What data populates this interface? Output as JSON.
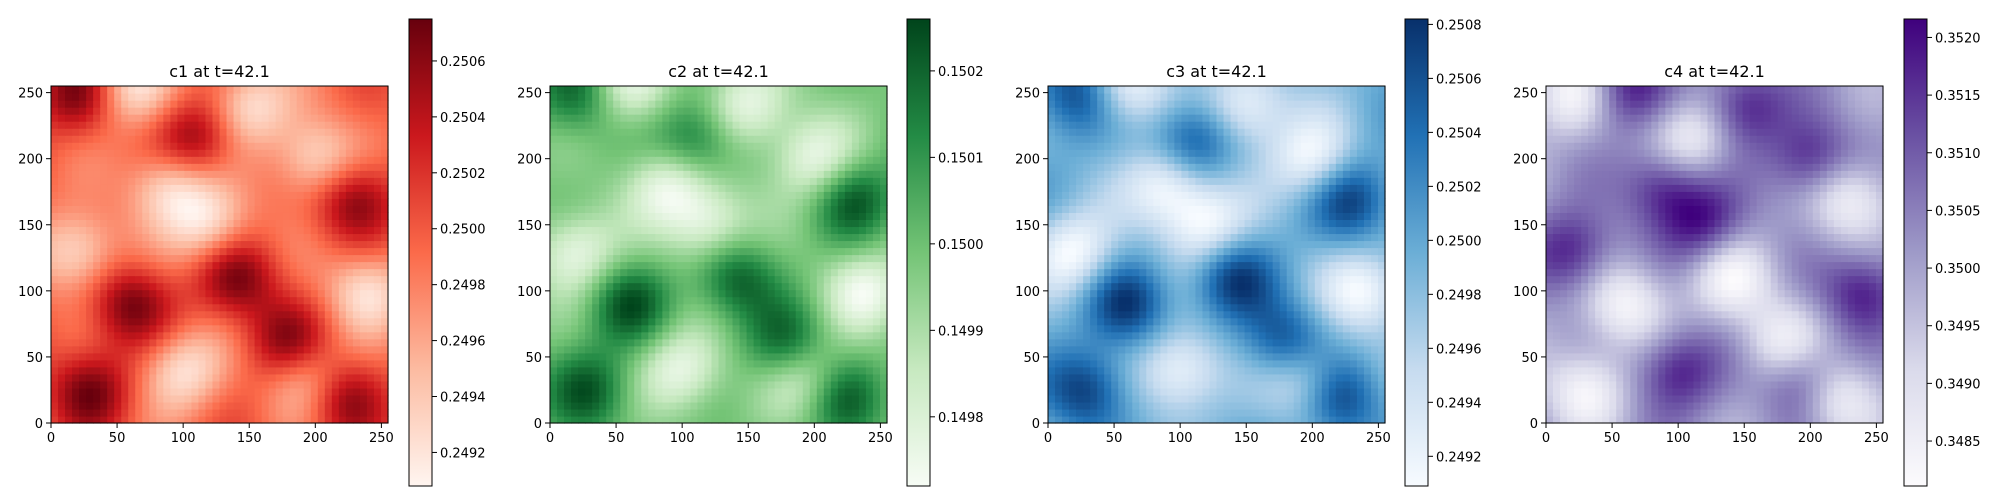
{
  "chart_data": [
    {
      "type": "heatmap",
      "title": "c1 at t=42.1",
      "colormap": "Reds",
      "colors": [
        "#fff5f0",
        "#fcbba1",
        "#fb6a4a",
        "#cb181d",
        "#67000d"
      ],
      "xlim": [
        0,
        255
      ],
      "ylim": [
        0,
        255
      ],
      "xticks": [
        "0",
        "50",
        "100",
        "150",
        "200",
        "250"
      ],
      "yticks": [
        "0",
        "50",
        "100",
        "150",
        "200",
        "250"
      ],
      "colorbar": {
        "min": 0.24908,
        "max": 0.25075,
        "ticks": [
          "0.2492",
          "0.2494",
          "0.2496",
          "0.2498",
          "0.2500",
          "0.2502",
          "0.2504",
          "0.2506"
        ],
        "tick_values": [
          0.2492,
          0.2494,
          0.2496,
          0.2498,
          0.25,
          0.2502,
          0.2504,
          0.2506
        ]
      }
    },
    {
      "type": "heatmap",
      "title": "c2 at t=42.1",
      "colormap": "Greens",
      "colors": [
        "#f7fcf5",
        "#c7e9c0",
        "#74c476",
        "#238b45",
        "#00441b"
      ],
      "xlim": [
        0,
        255
      ],
      "ylim": [
        0,
        255
      ],
      "xticks": [
        "0",
        "50",
        "100",
        "150",
        "200",
        "250"
      ],
      "yticks": [
        "0",
        "50",
        "100",
        "150",
        "200",
        "250"
      ],
      "colorbar": {
        "min": 0.14972,
        "max": 0.15026,
        "ticks": [
          "0.1498",
          "0.1499",
          "0.1500",
          "0.1501",
          "0.1502"
        ],
        "tick_values": [
          0.1498,
          0.1499,
          0.15,
          0.1501,
          0.1502
        ]
      }
    },
    {
      "type": "heatmap",
      "title": "c3 at t=42.1",
      "colormap": "Blues",
      "colors": [
        "#f7fbff",
        "#c6dbef",
        "#6baed6",
        "#2171b5",
        "#08306b"
      ],
      "xlim": [
        0,
        255
      ],
      "ylim": [
        0,
        255
      ],
      "xticks": [
        "0",
        "50",
        "100",
        "150",
        "200",
        "250"
      ],
      "yticks": [
        "0",
        "50",
        "100",
        "150",
        "200",
        "250"
      ],
      "colorbar": {
        "min": 0.24909,
        "max": 0.25082,
        "ticks": [
          "0.2492",
          "0.2494",
          "0.2496",
          "0.2498",
          "0.2500",
          "0.2502",
          "0.2504",
          "0.2506",
          "0.2508"
        ],
        "tick_values": [
          0.2492,
          0.2494,
          0.2496,
          0.2498,
          0.25,
          0.2502,
          0.2504,
          0.2506,
          0.2508
        ]
      }
    },
    {
      "type": "heatmap",
      "title": "c4 at t=42.1",
      "colormap": "Purples",
      "colors": [
        "#fcfbfd",
        "#dadaeb",
        "#9e9ac8",
        "#6a51a3",
        "#3f007d"
      ],
      "xlim": [
        0,
        255
      ],
      "ylim": [
        0,
        255
      ],
      "xticks": [
        "0",
        "50",
        "100",
        "150",
        "200",
        "250"
      ],
      "yticks": [
        "0",
        "50",
        "100",
        "150",
        "200",
        "250"
      ],
      "colorbar": {
        "min": 0.34811,
        "max": 0.35216,
        "ticks": [
          "0.3485",
          "0.3490",
          "0.3495",
          "0.3500",
          "0.3505",
          "0.3510",
          "0.3515",
          "0.3520"
        ],
        "tick_values": [
          0.3485,
          0.349,
          0.3495,
          0.35,
          0.3505,
          0.351,
          0.3515,
          0.352
        ]
      }
    }
  ]
}
